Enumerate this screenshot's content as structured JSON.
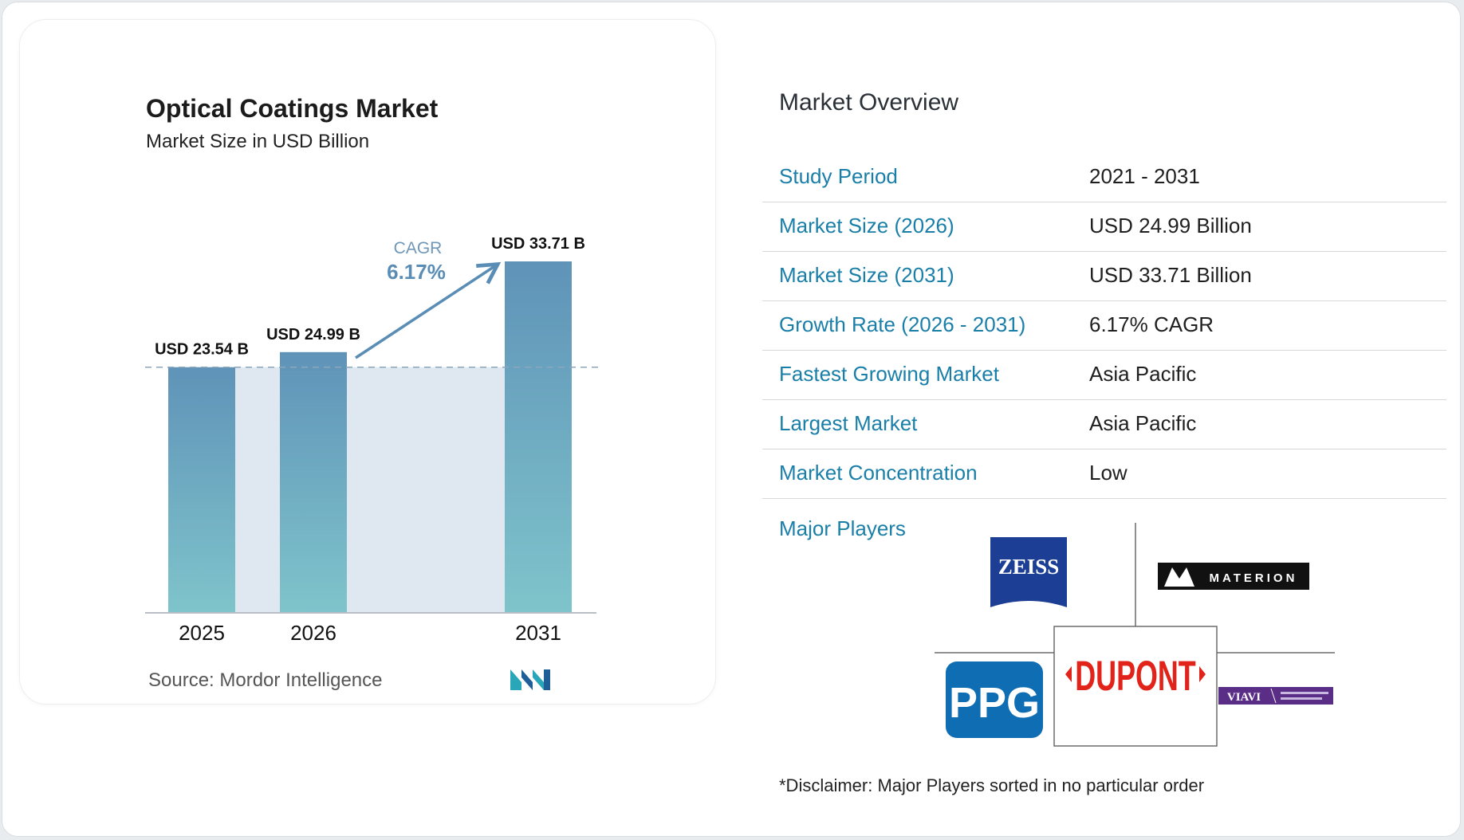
{
  "chart": {
    "title": "Optical Coatings Market",
    "subtitle": "Market Size in USD Billion",
    "source": "Source:  Mordor Intelligence",
    "cagr_label": "CAGR",
    "cagr_value": "6.17%"
  },
  "chart_data": {
    "type": "bar",
    "title": "Optical Coatings Market",
    "subtitle": "Market Size in USD Billion",
    "categories": [
      "2025",
      "2026",
      "2031"
    ],
    "values": [
      23.54,
      24.99,
      33.71
    ],
    "data_labels": [
      "USD 23.54 B",
      "USD 24.99 B",
      "USD 33.71 B"
    ],
    "xlabel": "",
    "ylabel": "",
    "ylim": [
      0,
      33.71
    ],
    "grid": false,
    "annotation": "CAGR 6.17%",
    "colors": {
      "bar_top": "#5f93b8",
      "bar_bottom": "#7fc4cb",
      "band": "#dfe8f1",
      "arrow": "#5a8db5"
    }
  },
  "overview": {
    "title": "Market Overview",
    "rows": [
      {
        "key": "Study Period",
        "value": "2021 - 2031"
      },
      {
        "key": "Market Size (2026)",
        "value": "USD 24.99 Billion"
      },
      {
        "key": "Market Size (2031)",
        "value": "USD 33.71 Billion"
      },
      {
        "key": "Growth Rate (2026 - 2031)",
        "value": "6.17% CAGR"
      },
      {
        "key": "Fastest Growing Market",
        "value": "Asia Pacific"
      },
      {
        "key": "Largest Market",
        "value": "Asia Pacific"
      },
      {
        "key": "Market Concentration",
        "value": "Low"
      }
    ],
    "players_label": "Major Players",
    "players": [
      "ZEISS",
      "MATERION",
      "PPG",
      "DUPONT",
      "VIAVI"
    ],
    "disclaimer": "*Disclaimer: Major Players sorted in no particular order"
  },
  "colors": {
    "accent": "#1a7fa8"
  }
}
